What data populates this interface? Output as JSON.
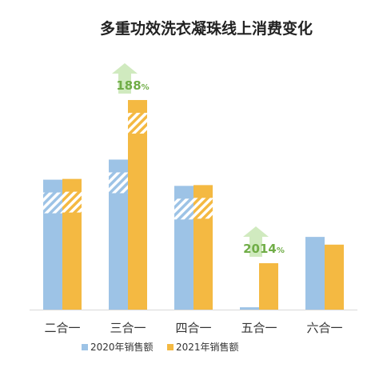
{
  "chart_data": {
    "type": "bar",
    "title": "多重功效洗衣凝珠线上消费变化",
    "categories": [
      "二合一",
      "三合一",
      "四合一",
      "五合一",
      "六合一"
    ],
    "series": [
      {
        "name": "2020年销售额",
        "color": "#9DC3E6",
        "values": [
          168,
          194,
          160,
          3,
          94
        ]
      },
      {
        "name": "2021年销售额",
        "color": "#F4B942",
        "values": [
          169,
          271,
          161,
          60,
          84
        ]
      }
    ],
    "ylim": [
      0,
      300
    ],
    "grid": false,
    "legend": "bottom",
    "hatched_break_categories": [
      "二合一",
      "三合一",
      "四合一"
    ],
    "annotations": [
      {
        "category": "三合一",
        "series": "2021年销售额",
        "number": "188",
        "unit": "%",
        "color": "#70AD47"
      },
      {
        "category": "五合一",
        "series": "2021年销售额",
        "number": "2014",
        "unit": "%",
        "color": "#70AD47"
      }
    ]
  }
}
